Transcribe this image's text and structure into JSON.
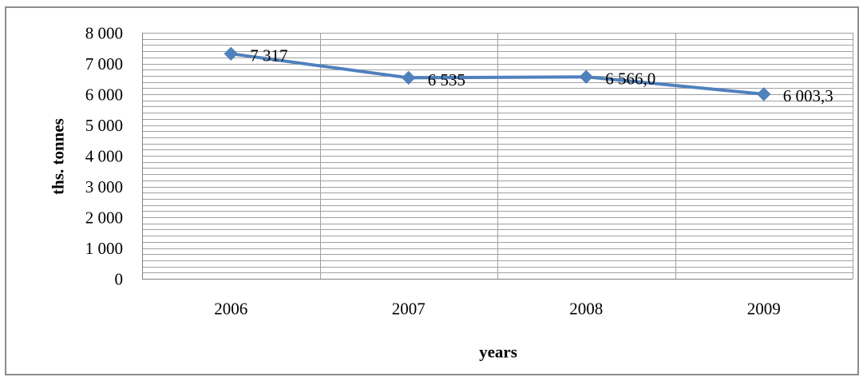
{
  "chart_data": {
    "type": "line",
    "categories": [
      "2006",
      "2007",
      "2008",
      "2009"
    ],
    "series": [
      {
        "values": [
          7317,
          6535,
          6566.0,
          6003.3
        ],
        "data_labels": [
          "7 317",
          "6 535",
          "6 566,0",
          "6 003,3"
        ],
        "color": "#4F81BD",
        "marker": "diamond"
      }
    ],
    "yticks": [
      0,
      1000,
      2000,
      3000,
      4000,
      5000,
      6000,
      7000,
      8000
    ],
    "ytick_labels": [
      "0",
      "1 000",
      "2 000",
      "3 000",
      "4 000",
      "5 000",
      "6 000",
      "7 000",
      "8 000"
    ],
    "ylim": [
      0,
      8000
    ],
    "ylabel": "ths. tonnes",
    "xlabel": "years",
    "title": "",
    "grid": true,
    "minor_grid_step": 200,
    "legend": "none"
  },
  "colors": {
    "line": "#4F81BD",
    "grid": "#a0a0a0",
    "axis": "#808080",
    "frame": "#8c8c8c"
  }
}
